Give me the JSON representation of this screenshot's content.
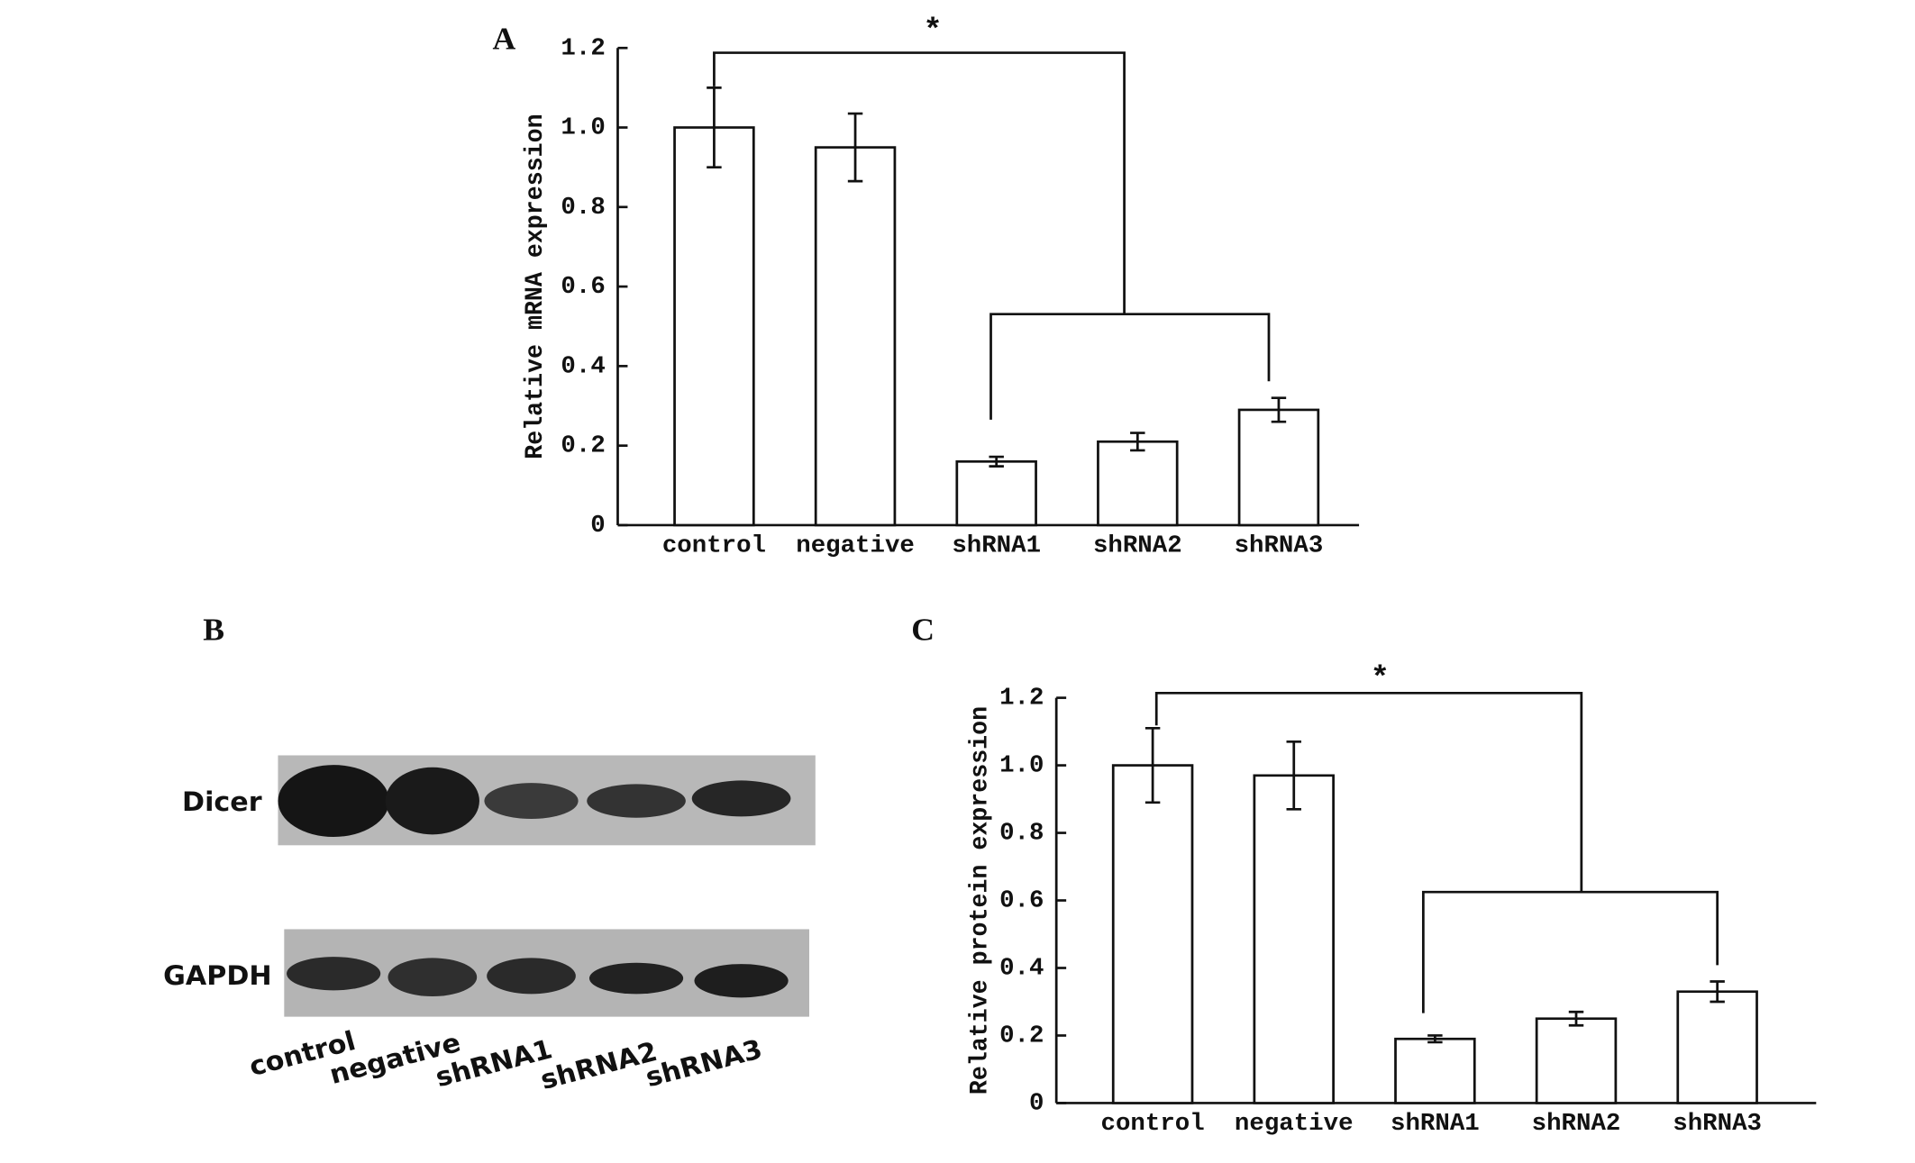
{
  "chart_data": [
    {
      "type": "bar",
      "panel": "A",
      "ylabel": "Relative mRNA expression",
      "annotation": "*",
      "categories": [
        "control",
        "negative",
        "shRNA1",
        "shRNA2",
        "shRNA3"
      ],
      "values": [
        1.0,
        0.95,
        0.16,
        0.21,
        0.29
      ],
      "errors": [
        0.1,
        0.085,
        0.012,
        0.022,
        0.03
      ],
      "color": "#ffffff",
      "ylim": [
        0,
        1.2
      ],
      "yticks": [
        0,
        0.2,
        0.4,
        0.6,
        0.8,
        {
          "value": 1,
          "label": "1.0"
        },
        1.2
      ]
    },
    {
      "type": "bar",
      "panel": "C",
      "ylabel": "Relative protein expression",
      "annotation": "*",
      "categories": [
        "control",
        "negative",
        "shRNA1",
        "shRNA2",
        "shRNA3"
      ],
      "values": [
        1.0,
        0.97,
        0.19,
        0.25,
        0.33
      ],
      "errors": [
        0.11,
        0.1,
        0.01,
        0.02,
        0.03
      ],
      "color": "#ffffff",
      "ylim": [
        0,
        1.2
      ],
      "yticks": [
        0,
        0.2,
        0.4,
        0.6,
        0.8,
        {
          "value": 1,
          "label": "1.0"
        },
        1.2
      ]
    }
  ],
  "blot": {
    "panel": "B",
    "rows": [
      "Dicer",
      "GAPDH"
    ],
    "lanes": [
      "control",
      "negative",
      "shRNA1",
      "shRNA2",
      "shRNA3"
    ]
  }
}
